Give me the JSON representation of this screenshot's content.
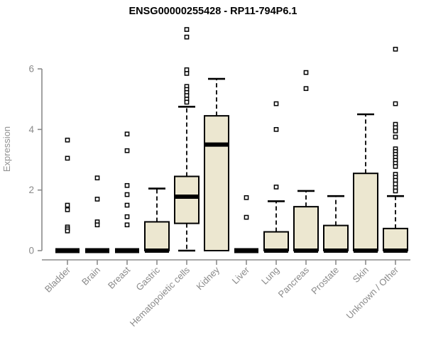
{
  "chart_data": {
    "type": "boxplot",
    "title": "ENSG00000255428 - RP11-794P6.1",
    "ylabel": "Expression",
    "xlabel": "",
    "ylim": [
      0,
      6
    ],
    "yticks": [
      0,
      2,
      4,
      6
    ],
    "grid": false,
    "legend": "none",
    "colors": {
      "box_fill": "#ece7d0",
      "box_stroke": "#000000",
      "median": "#000000",
      "outlier_stroke": "#000000",
      "outlier_fill": "#ffffff",
      "axis": "#8a8a8a",
      "tick_label": "#8a8a8a",
      "category_label": "#8a8a8a",
      "ylabel": "#929292",
      "title": "#000000",
      "background": "#ffffff"
    },
    "categories": [
      "Bladder",
      "Brain",
      "Breast",
      "Gastric",
      "Hematopoietic cells",
      "Kidney",
      "Liver",
      "Lung",
      "Pancreas",
      "Prostate",
      "Skin",
      "Unknown / Other"
    ],
    "series": [
      {
        "label": "Bladder",
        "q1": 0,
        "median": 0,
        "q3": 0,
        "whisker_low": 0,
        "whisker_high": 0,
        "outliers": [
          3.65,
          3.05,
          1.5,
          1.35,
          0.78,
          0.72,
          0.65
        ]
      },
      {
        "label": "Brain",
        "q1": 0,
        "median": 0,
        "q3": 0,
        "whisker_low": 0,
        "whisker_high": 0,
        "outliers": [
          2.4,
          1.7,
          0.95,
          0.85
        ]
      },
      {
        "label": "Breast",
        "q1": 0,
        "median": 0,
        "q3": 0,
        "whisker_low": 0,
        "whisker_high": 0,
        "outliers": [
          3.85,
          3.3,
          2.15,
          1.85,
          1.5,
          1.12,
          0.85
        ]
      },
      {
        "label": "Gastric",
        "q1": 0,
        "median": 0,
        "q3": 0.95,
        "whisker_low": 0,
        "whisker_high": 2.05,
        "outliers": []
      },
      {
        "label": "Hematopoietic cells",
        "q1": 0.9,
        "median": 1.78,
        "q3": 2.45,
        "whisker_low": 0,
        "whisker_high": 4.75,
        "outliers": [
          7.3,
          7.05,
          5.97,
          5.85,
          5.42,
          5.32,
          5.22,
          5.12,
          5.0,
          4.9
        ]
      },
      {
        "label": "Kidney",
        "q1": 0,
        "median": 3.5,
        "q3": 4.45,
        "whisker_low": 0,
        "whisker_high": 5.67,
        "outliers": []
      },
      {
        "label": "Liver",
        "q1": 0,
        "median": 0,
        "q3": 0,
        "whisker_low": 0,
        "whisker_high": 0,
        "outliers": [
          1.75,
          1.1
        ]
      },
      {
        "label": "Lung",
        "q1": 0,
        "median": 0,
        "q3": 0.62,
        "whisker_low": 0,
        "whisker_high": 1.63,
        "outliers": [
          4.85,
          4.0,
          2.1
        ]
      },
      {
        "label": "Pancreas",
        "q1": 0,
        "median": 0,
        "q3": 1.45,
        "whisker_low": 0,
        "whisker_high": 1.97,
        "outliers": [
          5.88,
          5.35
        ]
      },
      {
        "label": "Prostate",
        "q1": 0,
        "median": 0,
        "q3": 0.83,
        "whisker_low": 0,
        "whisker_high": 1.8,
        "outliers": []
      },
      {
        "label": "Skin",
        "q1": 0,
        "median": 0,
        "q3": 2.55,
        "whisker_low": 0,
        "whisker_high": 4.5,
        "outliers": []
      },
      {
        "label": "Unknown / Other",
        "q1": 0,
        "median": 0,
        "q3": 0.73,
        "whisker_low": 0,
        "whisker_high": 1.8,
        "outliers": [
          6.65,
          4.85,
          4.17,
          4.06,
          3.95,
          3.75,
          3.36,
          3.27,
          3.18,
          3.08,
          2.98,
          2.88,
          2.78,
          2.52,
          2.42,
          2.32,
          2.2,
          2.08,
          1.97
        ]
      }
    ]
  }
}
